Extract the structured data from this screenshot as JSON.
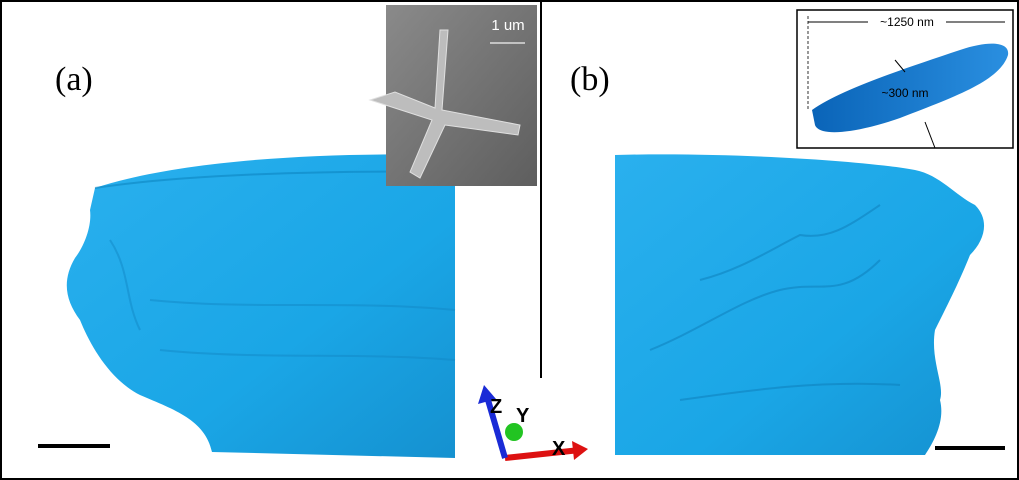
{
  "panels": [
    {
      "label": "(a)",
      "inset": {
        "scale_text": "1 um"
      }
    },
    {
      "label": "(b)",
      "inset": {
        "length_text": "~1250 nm",
        "width_text": "~300 nm"
      }
    }
  ],
  "axes": {
    "z": "Z",
    "y": "Y",
    "x": "X"
  }
}
